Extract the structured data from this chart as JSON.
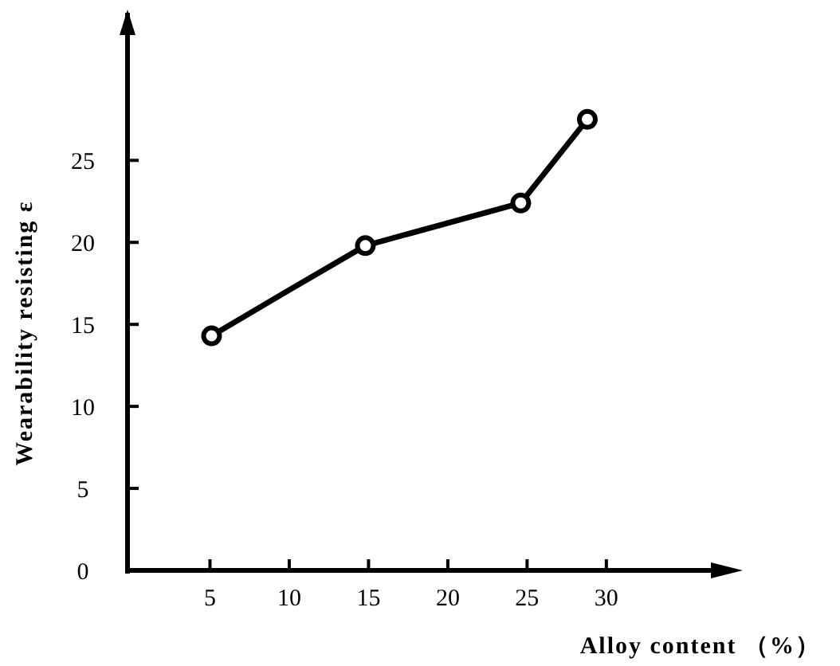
{
  "chart_data": {
    "type": "line",
    "xlabel": "Alloy content （%）",
    "ylabel": "Wearability resisting ε",
    "xlim": [
      0,
      38
    ],
    "ylim": [
      0,
      34
    ],
    "xticks": [
      5,
      10,
      15,
      20,
      25,
      30
    ],
    "yticks": [
      0,
      5,
      10,
      15,
      20,
      25
    ],
    "grid": false,
    "series": [
      {
        "color": "#000000",
        "marker": "none",
        "x": [
          5.1,
          10,
          14.8,
          24.6,
          28.8
        ],
        "values": [
          14.3,
          17.1,
          19.8,
          22.4,
          27.5
        ]
      },
      {
        "type": "scatter",
        "color": "#000000",
        "marker": "circle",
        "x": [
          5.1,
          14.8,
          24.6,
          28.8
        ],
        "values": [
          14.3,
          19.8,
          22.4,
          27.5
        ]
      }
    ]
  }
}
